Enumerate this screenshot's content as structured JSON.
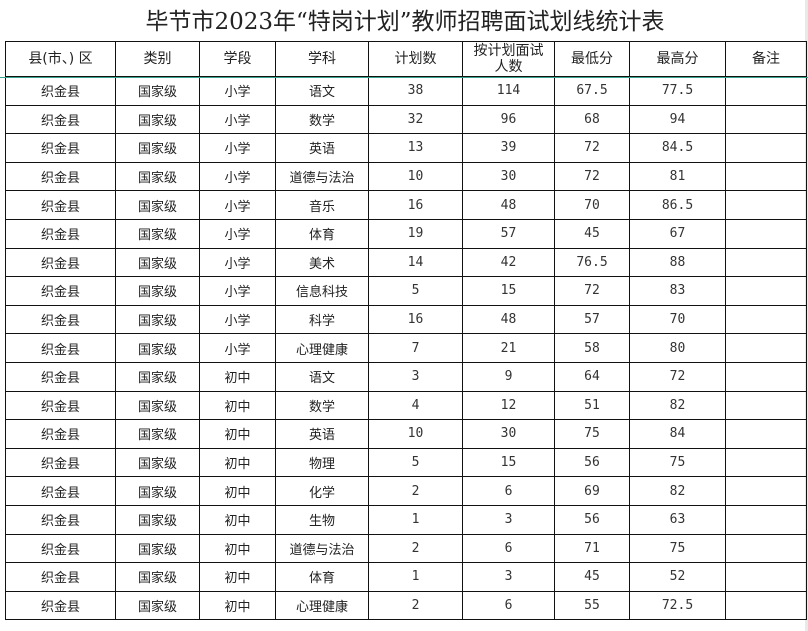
{
  "title": "毕节市2023年“特岗计划”教师招聘面试划线统计表",
  "headers": [
    "县(市、) 区",
    "类别",
    "学段",
    "学科",
    "计划数",
    "按计划面试人数",
    "最低分",
    "最高分",
    "备注"
  ],
  "rows": [
    [
      "织金县",
      "国家级",
      "小学",
      "语文",
      "38",
      "114",
      "67.5",
      "77.5",
      ""
    ],
    [
      "织金县",
      "国家级",
      "小学",
      "数学",
      "32",
      "96",
      "68",
      "94",
      ""
    ],
    [
      "织金县",
      "国家级",
      "小学",
      "英语",
      "13",
      "39",
      "72",
      "84.5",
      ""
    ],
    [
      "织金县",
      "国家级",
      "小学",
      "道德与法治",
      "10",
      "30",
      "72",
      "81",
      ""
    ],
    [
      "织金县",
      "国家级",
      "小学",
      "音乐",
      "16",
      "48",
      "70",
      "86.5",
      ""
    ],
    [
      "织金县",
      "国家级",
      "小学",
      "体育",
      "19",
      "57",
      "45",
      "67",
      ""
    ],
    [
      "织金县",
      "国家级",
      "小学",
      "美术",
      "14",
      "42",
      "76.5",
      "88",
      ""
    ],
    [
      "织金县",
      "国家级",
      "小学",
      "信息科技",
      "5",
      "15",
      "72",
      "83",
      ""
    ],
    [
      "织金县",
      "国家级",
      "小学",
      "科学",
      "16",
      "48",
      "57",
      "70",
      ""
    ],
    [
      "织金县",
      "国家级",
      "小学",
      "心理健康",
      "7",
      "21",
      "58",
      "80",
      ""
    ],
    [
      "织金县",
      "国家级",
      "初中",
      "语文",
      "3",
      "9",
      "64",
      "72",
      ""
    ],
    [
      "织金县",
      "国家级",
      "初中",
      "数学",
      "4",
      "12",
      "51",
      "82",
      ""
    ],
    [
      "织金县",
      "国家级",
      "初中",
      "英语",
      "10",
      "30",
      "75",
      "84",
      ""
    ],
    [
      "织金县",
      "国家级",
      "初中",
      "物理",
      "5",
      "15",
      "56",
      "75",
      ""
    ],
    [
      "织金县",
      "国家级",
      "初中",
      "化学",
      "2",
      "6",
      "69",
      "82",
      ""
    ],
    [
      "织金县",
      "国家级",
      "初中",
      "生物",
      "1",
      "3",
      "56",
      "63",
      ""
    ],
    [
      "织金县",
      "国家级",
      "初中",
      "道德与法治",
      "2",
      "6",
      "71",
      "75",
      ""
    ],
    [
      "织金县",
      "国家级",
      "初中",
      "体育",
      "1",
      "3",
      "45",
      "52",
      ""
    ],
    [
      "织金县",
      "国家级",
      "初中",
      "心理健康",
      "2",
      "6",
      "55",
      "72.5",
      ""
    ]
  ]
}
